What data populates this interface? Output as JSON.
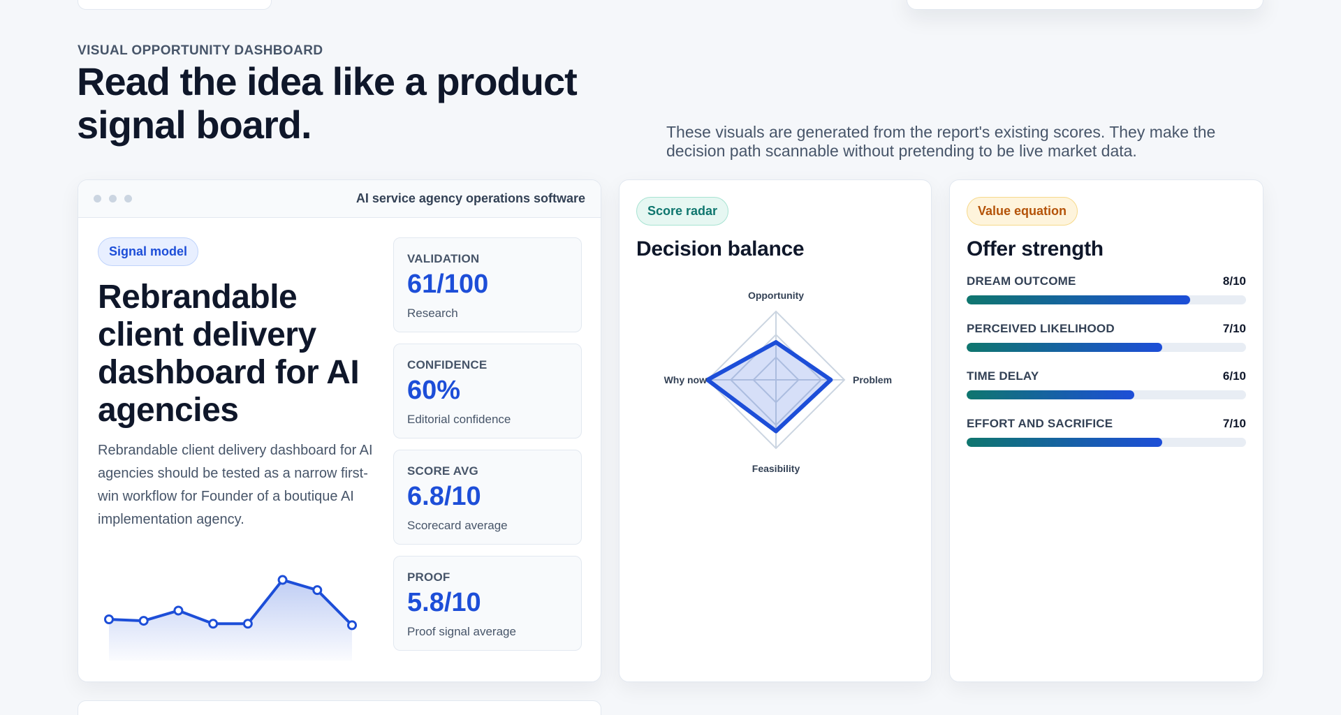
{
  "section": {
    "eyebrow": "VISUAL OPPORTUNITY DASHBOARD",
    "headline": "Read the idea like a product signal board.",
    "intro": "These visuals are generated from the report's existing scores. They make the decision path scannable without pretending to be live market data."
  },
  "main_card": {
    "window_title": "AI service agency operations software",
    "pill": "Signal model",
    "title": "Rebrandable client delivery dashboard for AI agencies",
    "description": "Rebrandable client delivery dashboard for AI agencies should be tested as a narrow first-win workflow for Founder of a boutique AI implementation agency.",
    "sparkline": [
      6.2,
      6.1,
      6.8,
      5.9,
      5.9,
      8.9,
      8.2,
      5.8
    ],
    "metrics": [
      {
        "label": "VALIDATION",
        "value": "61/100",
        "sub": "Research"
      },
      {
        "label": "CONFIDENCE",
        "value": "60%",
        "sub": "Editorial confidence"
      },
      {
        "label": "SCORE AVG",
        "value": "6.8/10",
        "sub": "Scorecard average"
      },
      {
        "label": "PROOF",
        "value": "5.8/10",
        "sub": "Proof signal average"
      }
    ]
  },
  "radar_card": {
    "pill": "Score radar",
    "title": "Decision balance",
    "axes": [
      {
        "label": "Opportunity",
        "value": 0.55
      },
      {
        "label": "Problem",
        "value": 0.8
      },
      {
        "label": "Feasibility",
        "value": 0.75
      },
      {
        "label": "Why now",
        "value": 1.0
      }
    ]
  },
  "offer_card": {
    "pill": "Value equation",
    "title": "Offer strength",
    "bars": [
      {
        "label": "DREAM OUTCOME",
        "score": "8/10",
        "fraction": 0.8
      },
      {
        "label": "PERCEIVED LIKELIHOOD",
        "score": "7/10",
        "fraction": 0.7
      },
      {
        "label": "TIME DELAY",
        "score": "6/10",
        "fraction": 0.6
      },
      {
        "label": "EFFORT AND SACRIFICE",
        "score": "7/10",
        "fraction": 0.7
      }
    ]
  },
  "colors": {
    "accent": "#1d4ed8",
    "teal": "#0f766e"
  }
}
